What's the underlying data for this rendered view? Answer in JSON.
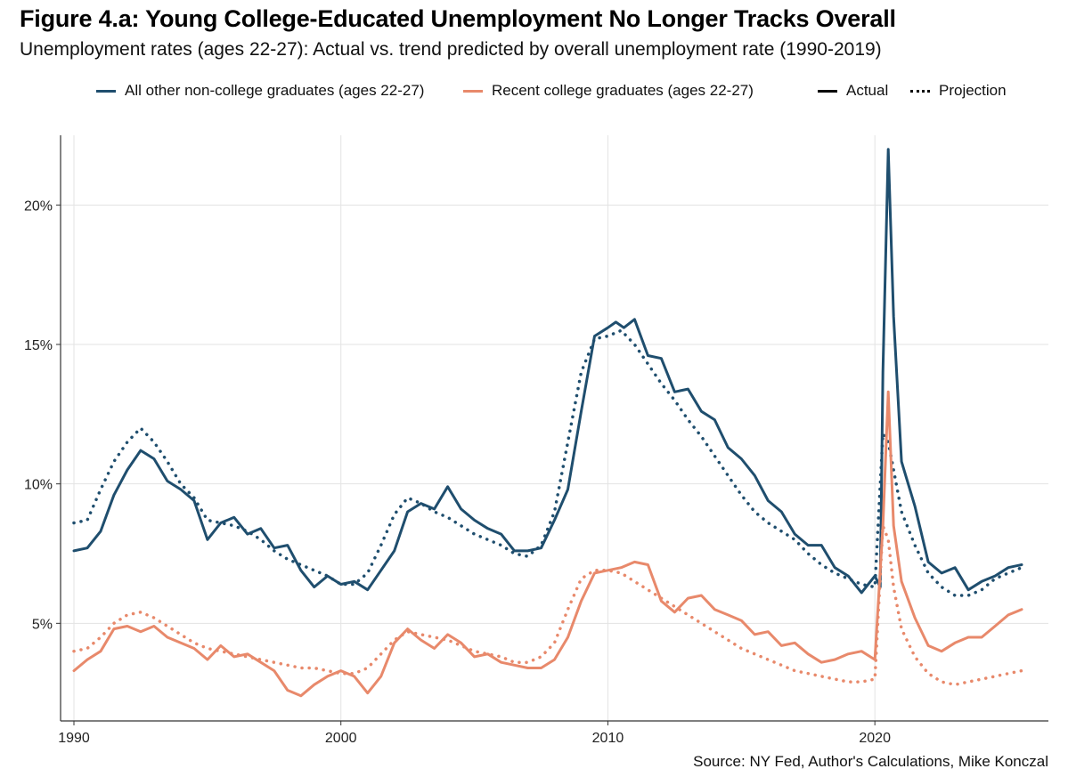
{
  "title": "Figure 4.a: Young College-Educated Unemployment No Longer Tracks Overall",
  "subtitle": "Unemployment rates (ages 22-27): Actual vs. trend predicted by overall unemployment rate (1990-2019)",
  "source": "Source: NY Fed, Author's Calculations, Mike Konczal",
  "colors": {
    "non_college": "#1f4e6e",
    "college": "#e8896b",
    "grid": "#e3e3e3",
    "axis": "#333333"
  },
  "legend": {
    "non_college": "All other non-college graduates (ages 22-27)",
    "college": "Recent college graduates (ages 22-27)",
    "actual": "Actual",
    "projection": "Projection"
  },
  "chart_data": {
    "type": "line",
    "xlabel": "",
    "ylabel": "",
    "xlim": [
      1989.5,
      2026.5
    ],
    "ylim": [
      1.5,
      22.5
    ],
    "x_ticks": [
      1990,
      2000,
      2010,
      2020
    ],
    "y_ticks": [
      5,
      10,
      15,
      20
    ],
    "y_tick_labels": [
      "5%",
      "10%",
      "15%",
      "20%"
    ],
    "grid": true,
    "legend_position": "top",
    "series": [
      {
        "name": "All other non-college graduates (ages 22-27)",
        "style": "Actual",
        "color": "#1f4e6e",
        "x": [
          1990.0,
          1990.5,
          1991.0,
          1991.5,
          1992.0,
          1992.5,
          1993.0,
          1993.5,
          1994.0,
          1994.5,
          1995.0,
          1995.5,
          1996.0,
          1996.5,
          1997.0,
          1997.5,
          1998.0,
          1998.5,
          1999.0,
          1999.5,
          2000.0,
          2000.5,
          2001.0,
          2001.5,
          2002.0,
          2002.5,
          2003.0,
          2003.5,
          2004.0,
          2004.5,
          2005.0,
          2005.5,
          2006.0,
          2006.5,
          2007.0,
          2007.5,
          2008.0,
          2008.5,
          2009.0,
          2009.5,
          2010.0,
          2010.3,
          2010.6,
          2011.0,
          2011.5,
          2012.0,
          2012.5,
          2013.0,
          2013.5,
          2014.0,
          2014.5,
          2015.0,
          2015.5,
          2016.0,
          2016.5,
          2017.0,
          2017.5,
          2018.0,
          2018.5,
          2019.0,
          2019.5,
          2020.0,
          2020.2,
          2020.3,
          2020.5,
          2020.7,
          2021.0,
          2021.5,
          2022.0,
          2022.5,
          2023.0,
          2023.5,
          2024.0,
          2024.5,
          2025.0,
          2025.5
        ],
        "y": [
          7.6,
          7.7,
          8.3,
          9.6,
          10.5,
          11.2,
          10.9,
          10.1,
          9.8,
          9.4,
          8.0,
          8.6,
          8.8,
          8.2,
          8.4,
          7.7,
          7.8,
          6.9,
          6.3,
          6.7,
          6.4,
          6.5,
          6.2,
          6.9,
          7.6,
          9.0,
          9.3,
          9.1,
          9.9,
          9.1,
          8.7,
          8.4,
          8.2,
          7.6,
          7.6,
          7.7,
          8.7,
          9.8,
          12.6,
          15.3,
          15.6,
          15.8,
          15.6,
          15.9,
          14.6,
          14.5,
          13.3,
          13.4,
          12.6,
          12.3,
          11.3,
          10.9,
          10.3,
          9.4,
          9.0,
          8.2,
          7.8,
          7.8,
          7.0,
          6.7,
          6.1,
          6.7,
          6.3,
          14.0,
          22.0,
          16.0,
          10.8,
          9.2,
          7.2,
          6.8,
          7.0,
          6.2,
          6.5,
          6.7,
          7.0,
          7.1
        ]
      },
      {
        "name": "All other non-college graduates (ages 22-27)",
        "style": "Projection",
        "color": "#1f4e6e",
        "x": [
          1990.0,
          1990.5,
          1991.0,
          1991.5,
          1992.0,
          1992.5,
          1993.0,
          1993.5,
          1994.0,
          1994.5,
          1995.0,
          1995.5,
          1996.0,
          1996.5,
          1997.0,
          1997.5,
          1998.0,
          1998.5,
          1999.0,
          1999.5,
          2000.0,
          2000.5,
          2001.0,
          2001.5,
          2002.0,
          2002.5,
          2003.0,
          2003.5,
          2004.0,
          2004.5,
          2005.0,
          2005.5,
          2006.0,
          2006.5,
          2007.0,
          2007.5,
          2008.0,
          2008.5,
          2009.0,
          2009.5,
          2010.0,
          2010.5,
          2011.0,
          2011.5,
          2012.0,
          2012.5,
          2013.0,
          2013.5,
          2014.0,
          2014.5,
          2015.0,
          2015.5,
          2016.0,
          2016.5,
          2017.0,
          2017.5,
          2018.0,
          2018.5,
          2019.0,
          2019.5,
          2020.0,
          2020.3,
          2020.5,
          2020.7,
          2021.0,
          2021.5,
          2022.0,
          2022.5,
          2023.0,
          2023.5,
          2024.0,
          2024.5,
          2025.0,
          2025.5
        ],
        "y": [
          8.6,
          8.7,
          9.8,
          10.8,
          11.5,
          12.0,
          11.5,
          10.8,
          10.0,
          9.5,
          8.7,
          8.6,
          8.5,
          8.3,
          8.0,
          7.6,
          7.3,
          7.1,
          6.9,
          6.7,
          6.4,
          6.4,
          6.8,
          7.8,
          8.9,
          9.5,
          9.3,
          9.0,
          8.8,
          8.5,
          8.2,
          8.0,
          7.8,
          7.5,
          7.4,
          7.8,
          9.0,
          11.5,
          14.0,
          15.2,
          15.3,
          15.5,
          15.0,
          14.3,
          13.6,
          13.0,
          12.3,
          11.7,
          11.0,
          10.3,
          9.6,
          9.0,
          8.6,
          8.3,
          8.0,
          7.5,
          7.1,
          6.8,
          6.6,
          6.4,
          6.3,
          11.8,
          11.5,
          10.5,
          9.0,
          7.8,
          6.8,
          6.3,
          6.0,
          6.0,
          6.2,
          6.6,
          6.8,
          7.0
        ]
      },
      {
        "name": "Recent college graduates (ages 22-27)",
        "style": "Actual",
        "color": "#e8896b",
        "x": [
          1990.0,
          1990.5,
          1991.0,
          1991.5,
          1992.0,
          1992.5,
          1993.0,
          1993.5,
          1994.0,
          1994.5,
          1995.0,
          1995.5,
          1996.0,
          1996.5,
          1997.0,
          1997.5,
          1998.0,
          1998.5,
          1999.0,
          1999.5,
          2000.0,
          2000.5,
          2001.0,
          2001.5,
          2002.0,
          2002.5,
          2003.0,
          2003.5,
          2004.0,
          2004.5,
          2005.0,
          2005.5,
          2006.0,
          2006.5,
          2007.0,
          2007.5,
          2008.0,
          2008.5,
          2009.0,
          2009.5,
          2010.0,
          2010.5,
          2011.0,
          2011.5,
          2012.0,
          2012.5,
          2013.0,
          2013.5,
          2014.0,
          2014.5,
          2015.0,
          2015.5,
          2016.0,
          2016.5,
          2017.0,
          2017.5,
          2018.0,
          2018.5,
          2019.0,
          2019.5,
          2020.0,
          2020.3,
          2020.5,
          2020.7,
          2021.0,
          2021.5,
          2022.0,
          2022.5,
          2023.0,
          2023.5,
          2024.0,
          2024.5,
          2025.0,
          2025.5
        ],
        "y": [
          3.3,
          3.7,
          4.0,
          4.8,
          4.9,
          4.7,
          4.9,
          4.5,
          4.3,
          4.1,
          3.7,
          4.2,
          3.8,
          3.9,
          3.6,
          3.3,
          2.6,
          2.4,
          2.8,
          3.1,
          3.3,
          3.1,
          2.5,
          3.1,
          4.3,
          4.8,
          4.4,
          4.1,
          4.6,
          4.3,
          3.8,
          3.9,
          3.6,
          3.5,
          3.4,
          3.4,
          3.7,
          4.5,
          5.8,
          6.8,
          6.9,
          7.0,
          7.2,
          7.1,
          5.8,
          5.4,
          5.9,
          6.0,
          5.5,
          5.3,
          5.1,
          4.6,
          4.7,
          4.2,
          4.3,
          3.9,
          3.6,
          3.7,
          3.9,
          4.0,
          3.7,
          8.5,
          13.3,
          8.5,
          6.5,
          5.2,
          4.2,
          4.0,
          4.3,
          4.5,
          4.5,
          4.9,
          5.3,
          5.5
        ]
      },
      {
        "name": "Recent college graduates (ages 22-27)",
        "style": "Projection",
        "color": "#e8896b",
        "x": [
          1990.0,
          1990.5,
          1991.0,
          1991.5,
          1992.0,
          1992.5,
          1993.0,
          1993.5,
          1994.0,
          1994.5,
          1995.0,
          1995.5,
          1996.0,
          1996.5,
          1997.0,
          1997.5,
          1998.0,
          1998.5,
          1999.0,
          1999.5,
          2000.0,
          2000.5,
          2001.0,
          2001.5,
          2002.0,
          2002.5,
          2003.0,
          2003.5,
          2004.0,
          2004.5,
          2005.0,
          2005.5,
          2006.0,
          2006.5,
          2007.0,
          2007.5,
          2008.0,
          2008.5,
          2009.0,
          2009.5,
          2010.0,
          2010.5,
          2011.0,
          2011.5,
          2012.0,
          2012.5,
          2013.0,
          2013.5,
          2014.0,
          2014.5,
          2015.0,
          2015.5,
          2016.0,
          2016.5,
          2017.0,
          2017.5,
          2018.0,
          2018.5,
          2019.0,
          2019.5,
          2020.0,
          2020.3,
          2020.5,
          2020.7,
          2021.0,
          2021.5,
          2022.0,
          2022.5,
          2023.0,
          2023.5,
          2024.0,
          2024.5,
          2025.0,
          2025.5
        ],
        "y": [
          4.0,
          4.1,
          4.5,
          5.0,
          5.3,
          5.4,
          5.2,
          4.9,
          4.6,
          4.3,
          4.1,
          4.0,
          3.9,
          3.8,
          3.7,
          3.6,
          3.5,
          3.4,
          3.4,
          3.3,
          3.2,
          3.2,
          3.4,
          3.9,
          4.4,
          4.7,
          4.6,
          4.5,
          4.4,
          4.2,
          4.0,
          3.9,
          3.8,
          3.6,
          3.6,
          3.8,
          4.3,
          5.5,
          6.6,
          6.9,
          6.9,
          6.8,
          6.5,
          6.2,
          5.9,
          5.6,
          5.3,
          5.0,
          4.7,
          4.4,
          4.1,
          3.9,
          3.7,
          3.5,
          3.3,
          3.2,
          3.1,
          3.0,
          2.9,
          2.9,
          3.0,
          8.5,
          8.0,
          6.3,
          4.8,
          3.8,
          3.2,
          2.9,
          2.8,
          2.9,
          3.0,
          3.1,
          3.2,
          3.3
        ]
      }
    ]
  }
}
